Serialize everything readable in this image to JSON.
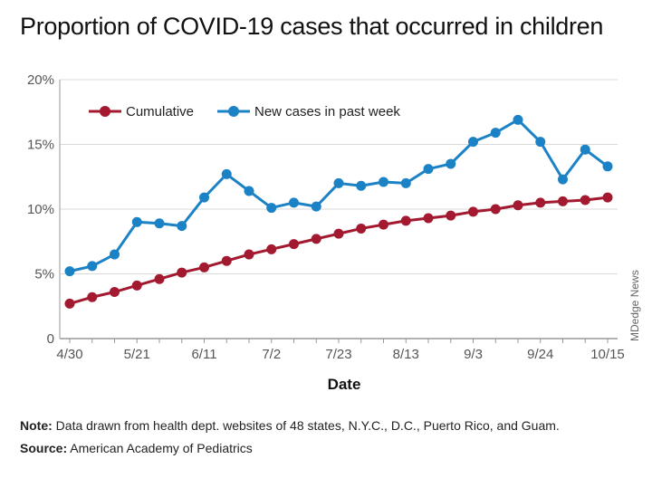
{
  "title": "Proportion of COVID-19 cases that occurred in children",
  "credit": "MDedge News",
  "note": {
    "label": "Note:",
    "text": "Data drawn from health dept. websites of 48 states, N.Y.C., D.C., Puerto Rico, and Guam."
  },
  "source": {
    "label": "Source:",
    "text": "American Academy of Pediatrics"
  },
  "colors": {
    "cumulative": "#a3192f",
    "weekly": "#1b82c6",
    "grid": "#d9d9d9",
    "axis": "#999999"
  },
  "chart_data": {
    "type": "line",
    "xlabel": "Date",
    "ylabel": "",
    "x": [
      "4/30",
      "5/7",
      "5/14",
      "5/21",
      "5/28",
      "6/4",
      "6/11",
      "6/18",
      "6/25",
      "7/2",
      "7/9",
      "7/16",
      "7/23",
      "7/30",
      "8/6",
      "8/13",
      "8/20",
      "8/27",
      "9/3",
      "9/10",
      "9/17",
      "9/24",
      "10/1",
      "10/8",
      "10/15"
    ],
    "xtick_labels": [
      "4/30",
      "5/21",
      "6/11",
      "7/2",
      "7/23",
      "8/13",
      "9/3",
      "9/24",
      "10/15"
    ],
    "ylim": [
      0,
      20
    ],
    "yticks": [
      0,
      5,
      10,
      15,
      20
    ],
    "ytick_labels": [
      "0",
      "5%",
      "10%",
      "15%",
      "20%"
    ],
    "grid": true,
    "legend_position": "top-left",
    "series": [
      {
        "name": "Cumulative",
        "color": "#a3192f",
        "values": [
          2.7,
          3.2,
          3.6,
          4.1,
          4.6,
          5.1,
          5.5,
          6.0,
          6.5,
          6.9,
          7.3,
          7.7,
          8.1,
          8.5,
          8.8,
          9.1,
          9.3,
          9.5,
          9.8,
          10.0,
          10.3,
          10.5,
          10.6,
          10.7,
          10.9
        ]
      },
      {
        "name": "New cases in past week",
        "color": "#1b82c6",
        "values": [
          5.2,
          5.6,
          6.5,
          9.0,
          8.9,
          8.7,
          10.9,
          12.7,
          11.4,
          10.1,
          10.5,
          10.2,
          12.0,
          11.8,
          12.1,
          12.0,
          13.1,
          13.5,
          15.2,
          15.9,
          16.9,
          15.2,
          12.3,
          14.6,
          13.3
        ]
      }
    ]
  }
}
